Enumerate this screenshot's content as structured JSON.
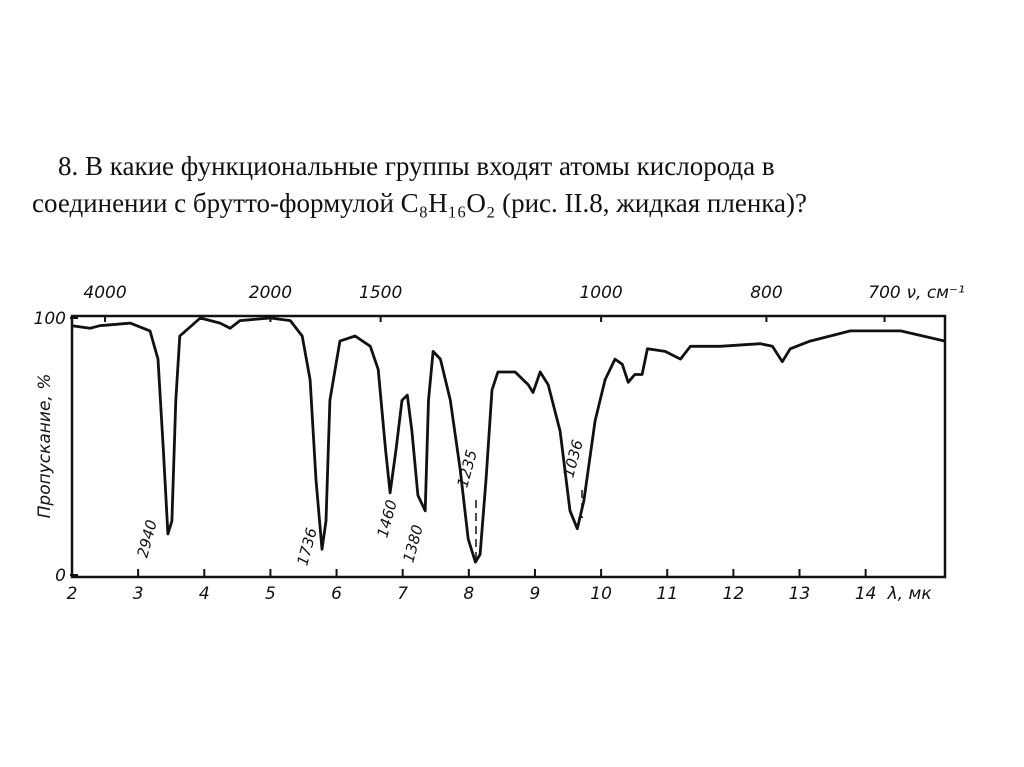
{
  "question": {
    "lines": [
      "8. В какие функциональные группы входят атомы кислорода в",
      "соединении с брутто-формулой C₈H₁₆O₂ (рис. II.8, жидкая пленка)?"
    ]
  },
  "chart_data": {
    "type": "line",
    "ylabel": "Пропускание, %",
    "xlabel": "λ, мк",
    "x2label": "ν, см⁻¹",
    "xlim": [
      2,
      15.2
    ],
    "xticks": [
      2,
      3,
      4,
      5,
      6,
      7,
      8,
      9,
      10,
      11,
      12,
      13,
      14
    ],
    "x2ticks": [
      4000,
      2000,
      1500,
      1000,
      800,
      700
    ],
    "ylim": [
      0,
      100
    ],
    "yticks": [
      0,
      100
    ],
    "annotations": [
      "2940",
      "1736",
      "1460",
      "1380",
      "1235",
      "1036"
    ],
    "series": [
      {
        "color": "#111111",
        "x": [
          2.0,
          2.27,
          2.42,
          2.88,
          3.18,
          3.3,
          3.38,
          3.45,
          3.51,
          3.57,
          3.63,
          3.94,
          4.24,
          4.39,
          4.54,
          5.0,
          5.3,
          5.48,
          5.6,
          5.69,
          5.78,
          5.84,
          5.9,
          6.05,
          6.28,
          6.51,
          6.63,
          6.74,
          6.81,
          6.9,
          6.99,
          7.07,
          7.14,
          7.23,
          7.34,
          7.39,
          7.46,
          7.57,
          7.72,
          7.87,
          7.99,
          8.1,
          8.17,
          8.26,
          8.35,
          8.44,
          8.7,
          8.9,
          8.97,
          9.08,
          9.2,
          9.38,
          9.53,
          9.64,
          9.74,
          9.91,
          10.06,
          10.21,
          10.32,
          10.41,
          10.51,
          10.62,
          10.7,
          10.97,
          11.2,
          11.35,
          11.8,
          12.41,
          12.59,
          12.74,
          12.86,
          13.16,
          13.77,
          14.53,
          15.2
        ],
        "values": [
          97,
          96,
          97,
          98,
          95,
          84,
          49,
          16,
          21,
          68,
          93,
          100,
          98,
          96,
          99,
          100,
          99,
          93,
          76,
          37,
          10,
          21,
          68,
          91,
          93,
          89,
          80,
          49,
          32,
          49,
          68,
          70,
          56,
          31,
          25,
          68,
          87,
          84,
          68,
          41,
          14,
          5,
          8,
          37,
          72,
          79,
          79,
          74,
          71,
          79,
          74,
          56,
          25,
          18,
          29,
          60,
          76,
          84,
          82,
          75,
          78,
          78,
          88,
          87,
          84,
          89,
          89,
          90,
          89,
          83,
          88,
          91,
          95,
          95,
          91
        ]
      }
    ]
  }
}
